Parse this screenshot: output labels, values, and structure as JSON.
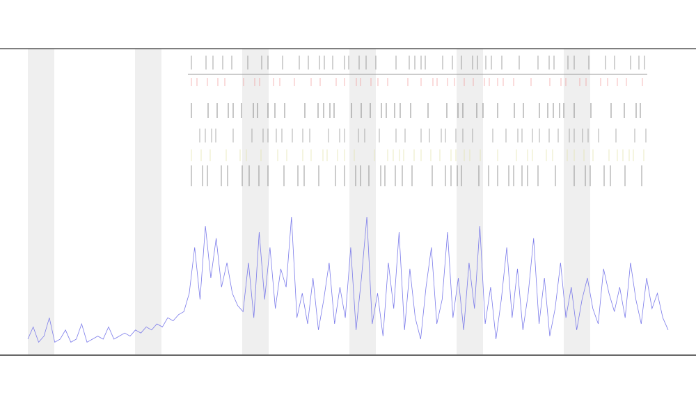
{
  "chart_data": {
    "type": "line",
    "series": [
      {
        "color": "#7b7bea",
        "values": [
          5,
          9,
          4,
          6,
          12,
          4,
          5,
          8,
          4,
          5,
          10,
          4,
          5,
          6,
          5,
          9,
          5,
          6,
          7,
          6,
          8,
          7,
          9,
          8,
          10,
          9,
          12,
          11,
          13,
          14,
          20,
          35,
          18,
          42,
          25,
          38,
          22,
          30,
          20,
          16,
          14,
          30,
          12,
          40,
          18,
          35,
          15,
          28,
          22,
          45,
          12,
          20,
          10,
          25,
          8,
          18,
          30,
          10,
          22,
          12,
          35,
          8,
          25,
          45,
          10,
          20,
          6,
          30,
          15,
          40,
          8,
          28,
          12,
          5,
          22,
          35,
          10,
          18,
          40,
          12,
          25,
          8,
          30,
          15,
          42,
          10,
          22,
          5,
          18,
          35,
          12,
          28,
          8,
          20,
          38,
          10,
          25,
          6,
          15,
          30,
          12,
          22,
          8,
          18,
          25,
          15,
          10,
          28,
          20,
          14,
          22,
          12,
          30,
          18,
          10,
          25,
          15,
          20,
          12,
          8
        ]
      }
    ],
    "ylim": [
      0,
      100
    ]
  }
}
